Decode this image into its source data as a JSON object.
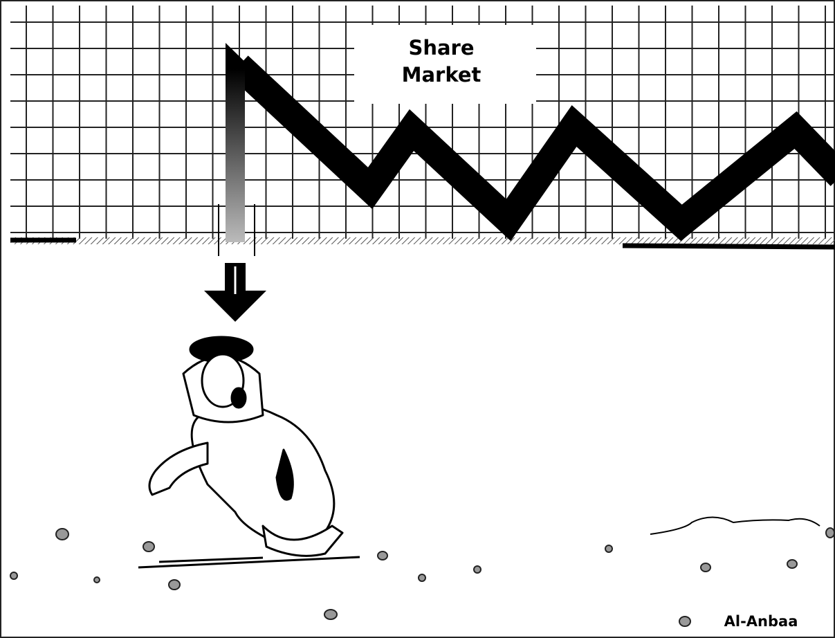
{
  "title": {
    "line1": "Share",
    "line2": "Market"
  },
  "credit": "Al-Anbaa"
}
